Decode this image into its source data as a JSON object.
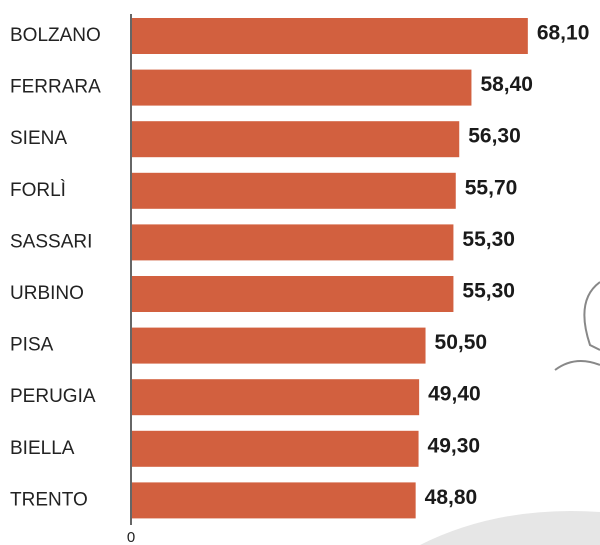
{
  "chart_data": {
    "type": "bar",
    "orientation": "horizontal",
    "categories": [
      "BOLZANO",
      "FERRARA",
      "SIENA",
      "FORLÌ",
      "SASSARI",
      "URBINO",
      "PISA",
      "PERUGIA",
      "BIELLA",
      "TRENTO"
    ],
    "values": [
      68.1,
      58.4,
      56.3,
      55.7,
      55.3,
      55.3,
      50.5,
      49.4,
      49.3,
      48.8
    ],
    "value_labels": [
      "68,10",
      "58,40",
      "56,30",
      "55,70",
      "55,30",
      "55,30",
      "50,50",
      "49,40",
      "49,30",
      "48,80"
    ],
    "color": "#d2603f",
    "xlim": [
      0,
      80
    ],
    "xticks": [
      0
    ]
  }
}
